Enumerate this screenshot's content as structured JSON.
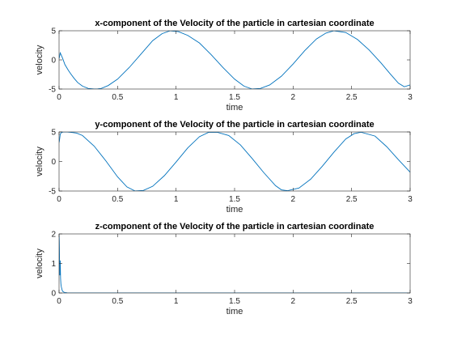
{
  "chart_data": [
    {
      "type": "line",
      "title": "x-component of the Velocity of the particle in cartesian coordinate",
      "xlabel": "time",
      "ylabel": "velocity",
      "xlim": [
        0,
        3
      ],
      "ylim": [
        -5,
        5
      ],
      "xticks": [
        "0",
        "0.5",
        "1",
        "1.5",
        "2",
        "2.5",
        "3"
      ],
      "xtick_values": [
        0,
        0.5,
        1,
        1.5,
        2,
        2.5,
        3
      ],
      "yticks": [
        "-5",
        "0",
        "5"
      ],
      "ytick_values": [
        -5,
        0,
        5
      ],
      "grid": false,
      "line_color": "#0072bd",
      "series": [
        {
          "x": [
            0,
            0.01,
            0.03,
            0.05,
            0.08,
            0.1,
            0.13,
            0.16,
            0.2,
            0.25,
            0.3,
            0.33,
            0.36,
            0.42,
            0.5,
            0.6,
            0.7,
            0.8,
            0.88,
            0.95,
            1.02,
            1.1,
            1.2,
            1.3,
            1.4,
            1.5,
            1.58,
            1.65,
            1.72,
            1.8,
            1.9,
            2.0,
            2.1,
            2.2,
            2.28,
            2.35,
            2.45,
            2.55,
            2.65,
            2.75,
            2.83,
            2.9,
            2.95,
            3.0
          ],
          "y": [
            0.2,
            1.2,
            0.3,
            -0.8,
            -1.8,
            -2.4,
            -3.2,
            -3.9,
            -4.5,
            -4.9,
            -5.0,
            -4.98,
            -4.9,
            -4.4,
            -3.3,
            -1.3,
            1.0,
            3.3,
            4.5,
            5.0,
            4.85,
            4.2,
            2.9,
            0.9,
            -1.3,
            -3.3,
            -4.5,
            -5.0,
            -4.9,
            -4.3,
            -2.8,
            -0.7,
            1.6,
            3.6,
            4.6,
            5.0,
            4.7,
            3.5,
            1.7,
            -0.5,
            -2.4,
            -4.0,
            -4.6,
            -4.3
          ]
        }
      ]
    },
    {
      "type": "line",
      "title": "y-component of the Velocity of the particle in cartesian coordinate",
      "xlabel": "time",
      "ylabel": "velocity",
      "xlim": [
        0,
        3
      ],
      "ylim": [
        -5,
        5
      ],
      "xticks": [
        "0",
        "0.5",
        "1",
        "1.5",
        "2",
        "2.5",
        "3"
      ],
      "xtick_values": [
        0,
        0.5,
        1,
        1.5,
        2,
        2.5,
        3
      ],
      "yticks": [
        "-5",
        "0",
        "5"
      ],
      "ytick_values": [
        -5,
        0,
        5
      ],
      "grid": false,
      "line_color": "#0072bd",
      "series": [
        {
          "x": [
            0,
            0.005,
            0.01,
            0.02,
            0.04,
            0.07,
            0.1,
            0.15,
            0.2,
            0.3,
            0.4,
            0.5,
            0.58,
            0.65,
            0.72,
            0.8,
            0.9,
            1.0,
            1.1,
            1.2,
            1.28,
            1.35,
            1.45,
            1.55,
            1.65,
            1.75,
            1.85,
            1.9,
            1.95,
            2.05,
            2.15,
            2.25,
            2.35,
            2.45,
            2.52,
            2.58,
            2.7,
            2.8,
            2.9,
            3.0
          ],
          "y": [
            3.2,
            3.8,
            4.6,
            4.9,
            5.0,
            5.0,
            4.95,
            4.8,
            4.4,
            2.6,
            0.1,
            -2.6,
            -4.3,
            -5.0,
            -4.9,
            -4.2,
            -2.4,
            -0.1,
            2.3,
            4.2,
            4.95,
            4.95,
            4.4,
            2.8,
            0.5,
            -1.9,
            -4.1,
            -4.8,
            -4.95,
            -4.5,
            -3.0,
            -0.8,
            1.6,
            3.8,
            4.7,
            4.95,
            4.3,
            2.5,
            0.3,
            -1.8
          ]
        }
      ]
    },
    {
      "type": "line",
      "title": "z-component of the Velocity of the particle in cartesian coordinate",
      "xlabel": "time",
      "ylabel": "velocity",
      "xlim": [
        0,
        3
      ],
      "ylim": [
        0,
        2
      ],
      "xticks": [
        "0",
        "0.5",
        "1",
        "1.5",
        "2",
        "2.5",
        "3"
      ],
      "xtick_values": [
        0,
        0.5,
        1,
        1.5,
        2,
        2.5,
        3
      ],
      "yticks": [
        "0",
        "1",
        "2"
      ],
      "ytick_values": [
        0,
        1,
        2
      ],
      "grid": false,
      "line_color": "#0072bd",
      "series": [
        {
          "x": [
            0,
            0.002,
            0.006,
            0.01,
            0.013,
            0.016,
            0.02,
            0.025,
            0.03,
            0.04,
            0.05,
            0.07,
            0.1,
            0.5,
            1.0,
            1.5,
            2.0,
            2.5,
            3.0
          ],
          "y": [
            2.0,
            1.75,
            0.6,
            1.1,
            0.5,
            0.3,
            0.2,
            0.12,
            0.06,
            0.03,
            0.015,
            0.005,
            0.0,
            0.0,
            0.0,
            0.0,
            0.0,
            0.0,
            0.0
          ]
        }
      ]
    }
  ]
}
